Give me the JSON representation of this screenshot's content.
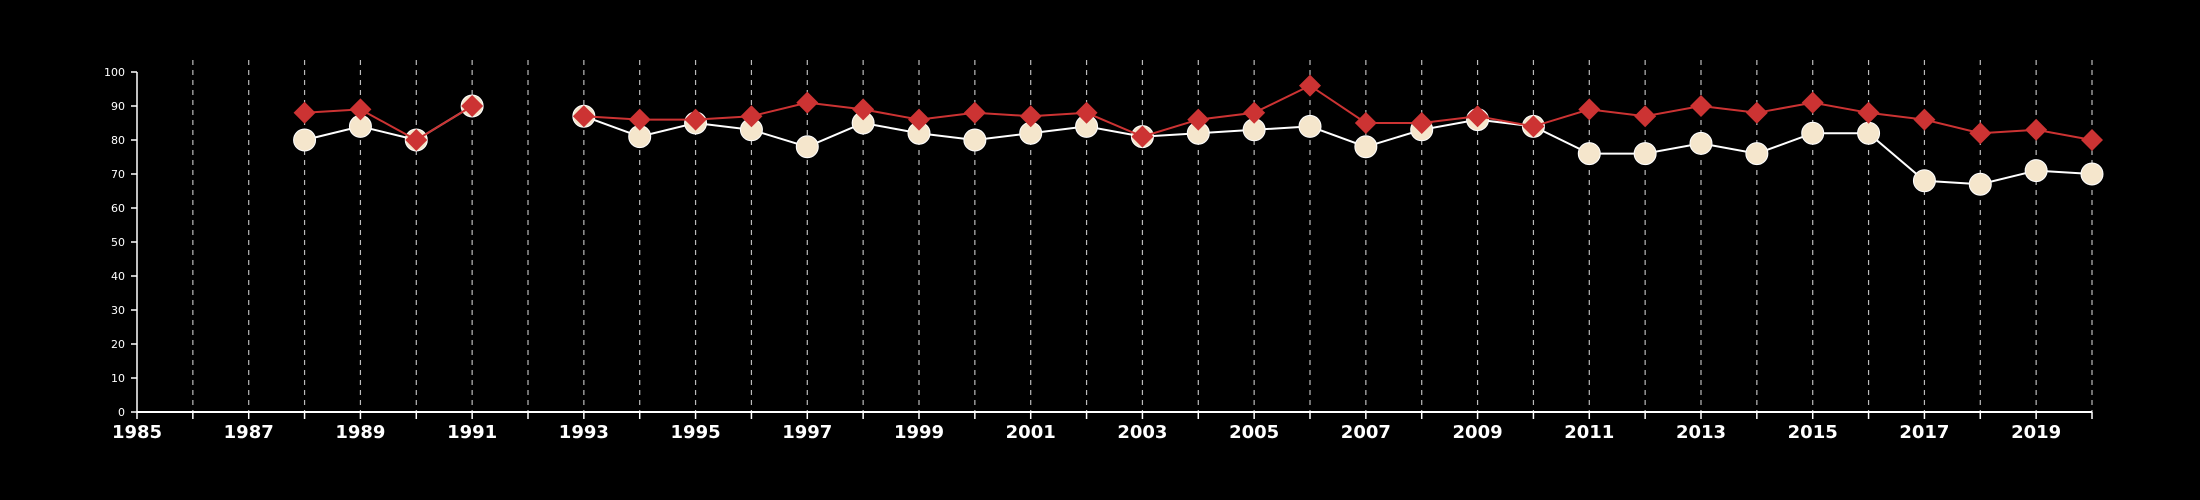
{
  "chart_data": {
    "type": "line",
    "title": "",
    "xlabel": "",
    "ylabel": "",
    "xlim": [
      1985,
      2020
    ],
    "ylim": [
      0,
      100
    ],
    "y_ticks": [
      0,
      10,
      20,
      30,
      40,
      50,
      60,
      70,
      80,
      90,
      100
    ],
    "x_tick_labels": [
      1985,
      1987,
      1989,
      1991,
      1993,
      1995,
      1997,
      1999,
      2001,
      2003,
      2005,
      2007,
      2009,
      2011,
      2013,
      2015,
      2017,
      2019
    ],
    "vertical_grid": "dashed, every year",
    "legend": "none",
    "series": [
      {
        "marker": "circle",
        "color": "#f5e6cc",
        "line_color": "#ffffff",
        "points": [
          [
            1988,
            80
          ],
          [
            1989,
            84
          ],
          [
            1990,
            80
          ],
          [
            1991,
            90
          ],
          [
            1993,
            87
          ],
          [
            1994,
            81
          ],
          [
            1995,
            85
          ],
          [
            1996,
            83
          ],
          [
            1997,
            78
          ],
          [
            1998,
            85
          ],
          [
            1999,
            82
          ],
          [
            2000,
            80
          ],
          [
            2001,
            82
          ],
          [
            2002,
            84
          ],
          [
            2003,
            81
          ],
          [
            2004,
            82
          ],
          [
            2005,
            83
          ],
          [
            2006,
            84
          ],
          [
            2007,
            78
          ],
          [
            2008,
            83
          ],
          [
            2009,
            86
          ],
          [
            2010,
            84
          ],
          [
            2011,
            76
          ],
          [
            2012,
            76
          ],
          [
            2013,
            79
          ],
          [
            2014,
            76
          ],
          [
            2015,
            82
          ],
          [
            2016,
            82
          ],
          [
            2017,
            68
          ],
          [
            2018,
            67
          ],
          [
            2019,
            71
          ],
          [
            2020,
            70
          ]
        ]
      },
      {
        "marker": "diamond",
        "color": "#cc3333",
        "line_color": "#cc3333",
        "points": [
          [
            1988,
            88
          ],
          [
            1989,
            89
          ],
          [
            1990,
            80
          ],
          [
            1991,
            90
          ],
          [
            1993,
            87
          ],
          [
            1994,
            86
          ],
          [
            1995,
            86
          ],
          [
            1996,
            87
          ],
          [
            1997,
            91
          ],
          [
            1998,
            89
          ],
          [
            1999,
            86
          ],
          [
            2000,
            88
          ],
          [
            2001,
            87
          ],
          [
            2002,
            88
          ],
          [
            2003,
            81
          ],
          [
            2004,
            86
          ],
          [
            2005,
            88
          ],
          [
            2006,
            96
          ],
          [
            2007,
            85
          ],
          [
            2008,
            85
          ],
          [
            2009,
            87
          ],
          [
            2010,
            84
          ],
          [
            2011,
            89
          ],
          [
            2012,
            87
          ],
          [
            2013,
            90
          ],
          [
            2014,
            88
          ],
          [
            2015,
            91
          ],
          [
            2016,
            88
          ],
          [
            2017,
            86
          ],
          [
            2018,
            82
          ],
          [
            2019,
            83
          ],
          [
            2020,
            80
          ]
        ]
      }
    ]
  }
}
